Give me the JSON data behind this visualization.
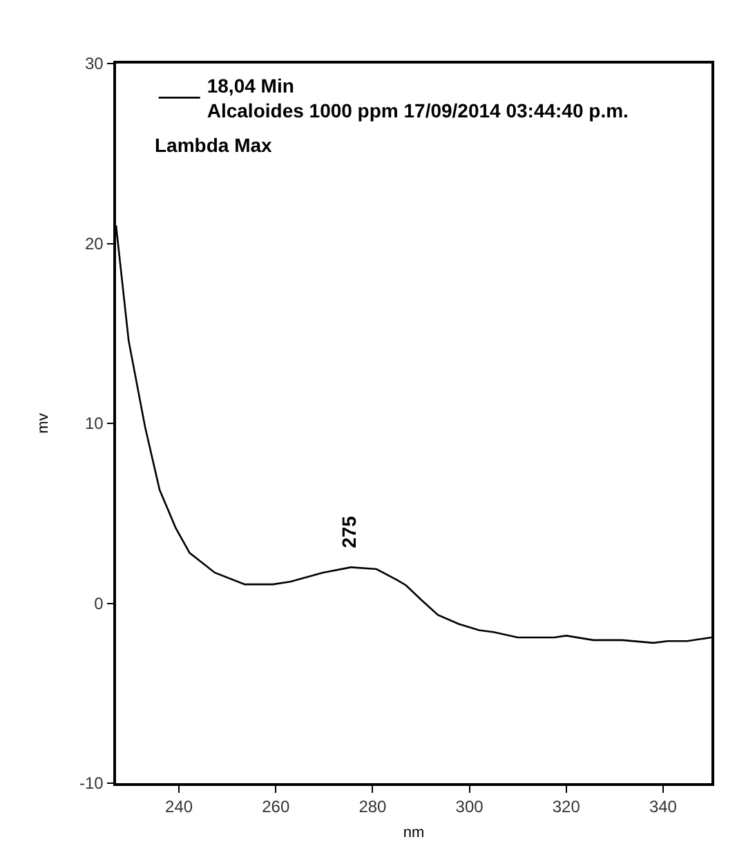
{
  "chart_data": {
    "type": "line",
    "xlabel": "nm",
    "ylabel": "mv",
    "xlim": [
      227,
      350
    ],
    "xticks": [
      240,
      260,
      280,
      300,
      320,
      340
    ],
    "ylim": [
      -10,
      30
    ],
    "yticks": [
      -10,
      0,
      10,
      20,
      30
    ],
    "legend": "top left",
    "marker": "none",
    "line_style": "solid",
    "series": [
      {
        "name": "18,04 Min\nAlcaloides 1000 ppm 17/09/2014 03:44:40 p.m.",
        "color": "#000000",
        "x": [
          227,
          229.6,
          233,
          236,
          239.3,
          242.2,
          247.4,
          253.6,
          259.4,
          263,
          269.7,
          275.5,
          280.8,
          285,
          286.9,
          290,
          293.5,
          297.8,
          302,
          305,
          310,
          317.5,
          320,
          325.6,
          331.6,
          338,
          341,
          345,
          350
        ],
        "values": [
          21.0,
          14.6,
          9.8,
          6.3,
          4.2,
          2.8,
          1.7,
          1.05,
          1.05,
          1.2,
          1.7,
          2.0,
          1.9,
          1.3,
          1.0,
          0.2,
          -0.65,
          -1.15,
          -1.5,
          -1.6,
          -1.9,
          -1.9,
          -1.8,
          -2.05,
          -2.05,
          -2.2,
          -2.1,
          -2.1,
          -1.9
        ]
      }
    ],
    "annotations": [
      "Lambda Max",
      {
        "text": "275",
        "x": 275,
        "y": 2.0
      }
    ]
  }
}
